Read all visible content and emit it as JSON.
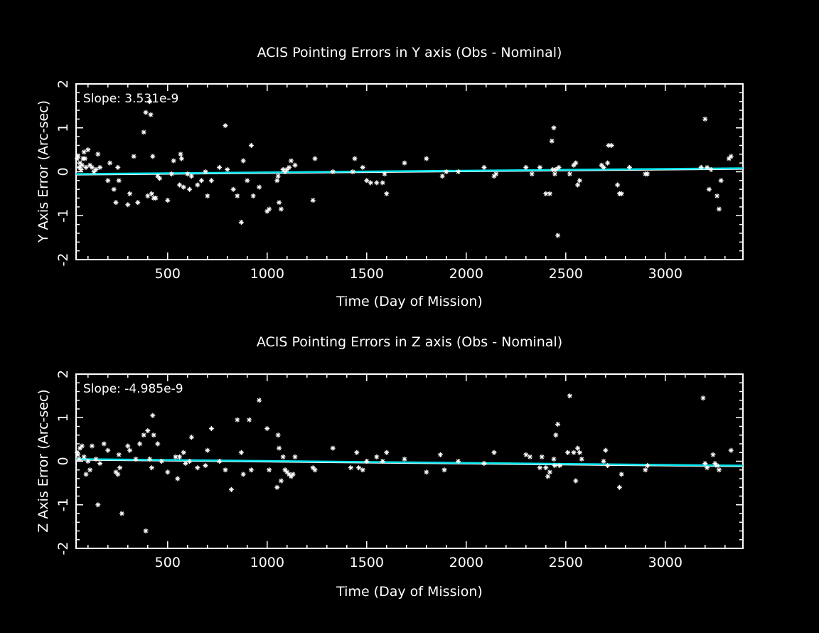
{
  "colors": {
    "background": "#000000",
    "foreground": "#ffffff",
    "fit_line": "#00e5ee"
  },
  "chart_data": [
    {
      "type": "scatter",
      "title": "ACIS Pointing Errors in Y axis (Obs - Nominal)",
      "xlabel": "Time (Day of Mission)",
      "ylabel": "Y Axis Error (Arc-sec)",
      "xlim": [
        40,
        3390
      ],
      "ylim": [
        -2,
        2
      ],
      "xticks": [
        500,
        1000,
        1500,
        2000,
        2500,
        3000
      ],
      "yticks": [
        -2,
        -1,
        0,
        1,
        2
      ],
      "slope_label": "Slope: 3.531e-9",
      "marker": "*",
      "fit_line": {
        "x": [
          40,
          3390
        ],
        "y": [
          -0.05,
          0.08
        ]
      },
      "x": [
        45,
        50,
        55,
        60,
        65,
        70,
        75,
        80,
        85,
        90,
        100,
        110,
        120,
        130,
        140,
        150,
        160,
        200,
        210,
        230,
        240,
        250,
        255,
        300,
        310,
        330,
        350,
        380,
        390,
        400,
        410,
        415,
        420,
        425,
        430,
        440,
        450,
        460,
        500,
        520,
        530,
        560,
        565,
        570,
        580,
        600,
        610,
        620,
        650,
        670,
        690,
        700,
        720,
        760,
        790,
        800,
        830,
        850,
        870,
        880,
        900,
        920,
        930,
        960,
        1000,
        1010,
        1050,
        1055,
        1060,
        1070,
        1080,
        1090,
        1100,
        1110,
        1120,
        1140,
        1230,
        1240,
        1330,
        1430,
        1440,
        1480,
        1500,
        1520,
        1550,
        1580,
        1590,
        1600,
        1690,
        1800,
        1880,
        1900,
        1960,
        2090,
        2140,
        2150,
        2300,
        2330,
        2370,
        2400,
        2420,
        2430,
        2435,
        2440,
        2445,
        2450,
        2460,
        2465,
        2520,
        2540,
        2550,
        2560,
        2570,
        2680,
        2690,
        2710,
        2715,
        2730,
        2760,
        2770,
        2780,
        2820,
        2900,
        2910,
        3180,
        3200,
        3210,
        3220,
        3230,
        3260,
        3270,
        3280,
        3320,
        3330
      ],
      "y": [
        0.3,
        0.35,
        0.1,
        0.2,
        0.05,
        0.15,
        0.3,
        0.45,
        0.3,
        0.1,
        0.5,
        0.15,
        0.1,
        0.0,
        0.05,
        0.4,
        0.1,
        -0.2,
        0.2,
        -0.4,
        -0.7,
        0.1,
        -0.2,
        -0.75,
        -0.5,
        0.35,
        -0.7,
        0.9,
        1.35,
        -0.55,
        1.6,
        1.3,
        -0.5,
        0.35,
        -0.6,
        -0.6,
        -0.1,
        -0.15,
        -0.65,
        -0.05,
        0.25,
        -0.3,
        0.4,
        0.3,
        -0.35,
        -0.05,
        -0.4,
        -0.1,
        -0.3,
        -0.2,
        0.0,
        -0.55,
        -0.2,
        0.1,
        1.05,
        0.05,
        -0.4,
        -0.55,
        -1.15,
        0.25,
        -0.2,
        0.6,
        -0.55,
        -0.35,
        -0.9,
        -0.85,
        -0.2,
        -0.1,
        -0.7,
        -0.85,
        0.05,
        0.0,
        0.05,
        0.1,
        0.25,
        0.15,
        -0.65,
        0.3,
        0.0,
        0.0,
        0.3,
        0.1,
        -0.2,
        -0.25,
        -0.25,
        -0.25,
        -0.05,
        -0.5,
        0.2,
        0.3,
        -0.1,
        0.0,
        0.0,
        0.1,
        -0.1,
        -0.05,
        0.1,
        -0.05,
        0.1,
        -0.5,
        -0.5,
        0.7,
        0.05,
        1.0,
        -0.05,
        0.05,
        -1.45,
        0.1,
        -0.05,
        0.15,
        0.2,
        -0.3,
        -0.2,
        0.15,
        0.1,
        0.2,
        0.6,
        0.6,
        -0.3,
        -0.5,
        -0.5,
        0.1,
        -0.05,
        -0.05,
        0.1,
        1.2,
        0.1,
        -0.4,
        0.05,
        -0.55,
        -0.85,
        -0.2,
        0.3,
        0.35
      ]
    },
    {
      "type": "scatter",
      "title": "ACIS Pointing Errors in  Z axis (Obs - Nominal)",
      "xlabel": "Time (Day of Mission)",
      "ylabel": "Z Axis Error (Arc-sec)",
      "xlim": [
        40,
        3390
      ],
      "ylim": [
        -2,
        2
      ],
      "xticks": [
        500,
        1000,
        1500,
        2000,
        2500,
        3000
      ],
      "yticks": [
        -2,
        -1,
        0,
        1,
        2
      ],
      "slope_label": "Slope: -4.985e-9",
      "marker": "*",
      "fit_line": {
        "x": [
          40,
          3390
        ],
        "y": [
          0.05,
          -0.1
        ]
      },
      "x": [
        45,
        50,
        55,
        60,
        70,
        80,
        90,
        100,
        110,
        120,
        140,
        150,
        160,
        180,
        200,
        240,
        250,
        255,
        260,
        270,
        300,
        310,
        340,
        360,
        380,
        390,
        400,
        410,
        420,
        425,
        430,
        450,
        470,
        500,
        540,
        550,
        560,
        580,
        590,
        610,
        620,
        650,
        690,
        700,
        720,
        760,
        790,
        820,
        850,
        870,
        880,
        910,
        920,
        960,
        1000,
        1010,
        1050,
        1055,
        1060,
        1070,
        1080,
        1090,
        1100,
        1110,
        1120,
        1130,
        1140,
        1230,
        1240,
        1330,
        1420,
        1450,
        1460,
        1480,
        1500,
        1550,
        1580,
        1600,
        1690,
        1800,
        1870,
        1890,
        1960,
        2090,
        2140,
        2300,
        2320,
        2370,
        2380,
        2400,
        2410,
        2420,
        2440,
        2445,
        2450,
        2460,
        2470,
        2510,
        2520,
        2540,
        2550,
        2560,
        2570,
        2580,
        2690,
        2700,
        2710,
        2770,
        2780,
        2900,
        2910,
        3190,
        3200,
        3210,
        3240,
        3250,
        3260,
        3270,
        3330
      ],
      "y": [
        0.2,
        0.15,
        0.05,
        0.3,
        0.35,
        0.1,
        -0.3,
        0.0,
        -0.2,
        0.35,
        0.05,
        -1.0,
        -0.05,
        0.4,
        0.25,
        -0.25,
        -0.3,
        0.15,
        -0.15,
        -1.2,
        0.35,
        0.25,
        0.05,
        0.4,
        0.6,
        -1.6,
        0.7,
        0.05,
        -0.15,
        1.05,
        0.6,
        0.4,
        0.0,
        -0.25,
        0.1,
        -0.4,
        0.1,
        0.2,
        -0.05,
        0.0,
        0.55,
        -0.15,
        -0.1,
        0.25,
        0.75,
        0.0,
        -0.2,
        -0.65,
        0.95,
        0.2,
        -0.3,
        0.95,
        -0.2,
        1.4,
        0.75,
        -0.2,
        -0.6,
        0.6,
        0.3,
        -0.45,
        0.1,
        -0.2,
        -0.25,
        -0.3,
        -0.35,
        -0.3,
        0.1,
        -0.15,
        -0.2,
        0.3,
        -0.15,
        0.2,
        -0.15,
        -0.2,
        0.0,
        0.1,
        0.0,
        0.2,
        0.05,
        -0.25,
        0.15,
        -0.2,
        0.0,
        -0.05,
        0.2,
        0.15,
        0.1,
        -0.15,
        0.1,
        -0.15,
        -0.35,
        -0.25,
        0.05,
        -0.1,
        0.6,
        0.85,
        -0.1,
        0.2,
        1.5,
        0.2,
        -0.45,
        0.3,
        0.2,
        0.05,
        0.0,
        0.25,
        -0.1,
        -0.6,
        -0.3,
        -0.2,
        -0.1,
        1.45,
        -0.05,
        -0.15,
        0.15,
        -0.05,
        -0.1,
        -0.2,
        0.25
      ]
    }
  ]
}
